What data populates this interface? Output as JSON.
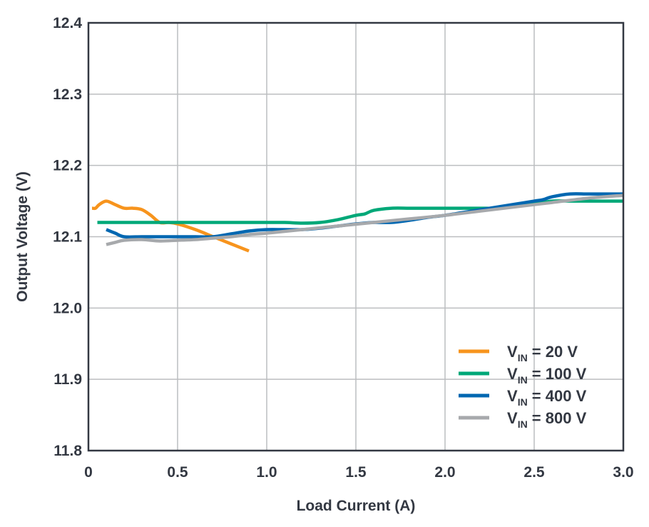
{
  "chart_data": {
    "type": "line",
    "title": "",
    "xlabel": "Load Current (A)",
    "ylabel": "Output Voltage (V)",
    "xlim": [
      0,
      3.0
    ],
    "ylim": [
      11.8,
      12.4
    ],
    "grid": true,
    "legend_position": "bottom-right",
    "x_ticks": [
      0,
      0.5,
      1.0,
      1.5,
      2.0,
      2.5,
      3.0
    ],
    "x_tick_labels": [
      "0",
      "0.5",
      "1.0",
      "1.5",
      "2.0",
      "2.5",
      "3.0"
    ],
    "y_ticks": [
      11.8,
      11.9,
      12.0,
      12.1,
      12.2,
      12.3,
      12.4
    ],
    "y_tick_labels": [
      "11.8",
      "11.9",
      "12.0",
      "12.1",
      "12.2",
      "12.3",
      "12.4"
    ],
    "series": [
      {
        "legend_main": "V",
        "legend_sub": "IN",
        "legend_rest": " = 20 V",
        "color": "#F7941D",
        "x": [
          0.02,
          0.04,
          0.06,
          0.1,
          0.15,
          0.2,
          0.25,
          0.3,
          0.35,
          0.4,
          0.45,
          0.5,
          0.6,
          0.7,
          0.8,
          0.9
        ],
        "y": [
          12.14,
          12.14,
          12.145,
          12.15,
          12.145,
          12.14,
          12.14,
          12.138,
          12.13,
          12.12,
          12.12,
          12.118,
          12.11,
          12.1,
          12.09,
          12.08
        ]
      },
      {
        "legend_main": "V",
        "legend_sub": "IN",
        "legend_rest": " = 100 V",
        "color": "#00A878",
        "x": [
          0.05,
          0.2,
          0.5,
          0.8,
          1.0,
          1.1,
          1.2,
          1.3,
          1.4,
          1.5,
          1.55,
          1.6,
          1.7,
          1.8,
          1.9,
          2.0,
          2.1,
          2.2,
          2.3,
          2.4,
          2.5,
          2.6,
          2.7,
          2.8,
          2.9,
          3.0
        ],
        "y": [
          12.12,
          12.12,
          12.12,
          12.12,
          12.12,
          12.12,
          12.119,
          12.12,
          12.124,
          12.13,
          12.132,
          12.137,
          12.14,
          12.14,
          12.14,
          12.14,
          12.14,
          12.14,
          12.14,
          12.143,
          12.146,
          12.15,
          12.15,
          12.15,
          12.15,
          12.15
        ]
      },
      {
        "legend_main": "V",
        "legend_sub": "IN",
        "legend_rest": " = 400 V",
        "color": "#0067B1",
        "x": [
          0.1,
          0.15,
          0.2,
          0.3,
          0.4,
          0.5,
          0.6,
          0.7,
          0.8,
          0.9,
          1.0,
          1.1,
          1.2,
          1.3,
          1.4,
          1.5,
          1.6,
          1.7,
          1.8,
          1.9,
          2.0,
          2.1,
          2.2,
          2.3,
          2.4,
          2.5,
          2.55,
          2.6,
          2.7,
          2.8,
          2.9,
          3.0
        ],
        "y": [
          12.11,
          12.105,
          12.1,
          12.1,
          12.1,
          12.1,
          12.1,
          12.1,
          12.104,
          12.108,
          12.11,
          12.11,
          12.11,
          12.112,
          12.115,
          12.118,
          12.12,
          12.12,
          12.123,
          12.127,
          12.13,
          12.134,
          12.138,
          12.142,
          12.146,
          12.15,
          12.152,
          12.156,
          12.16,
          12.16,
          12.16,
          12.16
        ]
      },
      {
        "legend_main": "V",
        "legend_sub": "IN",
        "legend_rest": " = 800 V",
        "color": "#A7A9AC",
        "x": [
          0.1,
          0.15,
          0.2,
          0.3,
          0.4,
          0.5,
          0.6,
          0.7,
          0.8,
          0.9,
          1.0,
          1.2,
          1.4,
          1.6,
          1.8,
          2.0,
          2.2,
          2.4,
          2.6,
          2.8,
          3.0
        ],
        "y": [
          12.089,
          12.092,
          12.095,
          12.096,
          12.094,
          12.095,
          12.096,
          12.098,
          12.1,
          12.103,
          12.105,
          12.11,
          12.115,
          12.12,
          12.125,
          12.13,
          12.136,
          12.142,
          12.148,
          12.154,
          12.158
        ]
      }
    ]
  }
}
